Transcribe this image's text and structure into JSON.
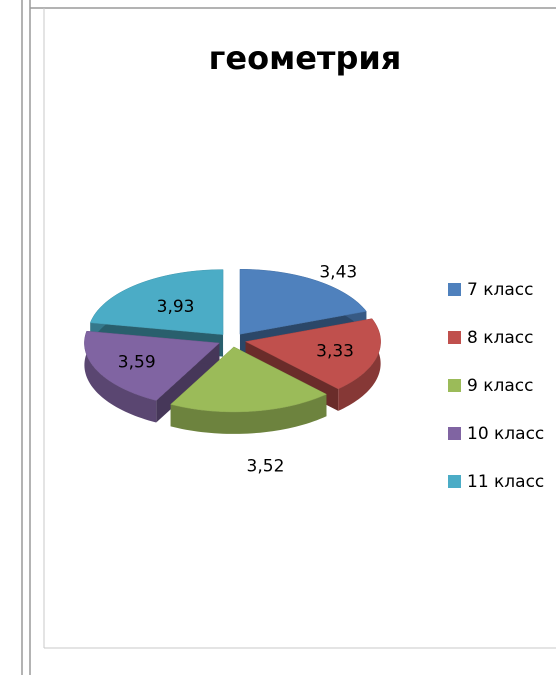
{
  "chart_data": {
    "type": "pie",
    "title": "геометрия",
    "categories": [
      "7 класс",
      "8 класс",
      "9 класс",
      "10 класс",
      "11 класс"
    ],
    "values": [
      3.43,
      3.33,
      3.52,
      3.59,
      3.93
    ],
    "value_labels": [
      "3,43",
      "3,33",
      "3,52",
      "3,59",
      "3,93"
    ],
    "colors": [
      "#4f81bd",
      "#c0504d",
      "#9bbb59",
      "#8064a2",
      "#4bacc6"
    ],
    "legend": "right"
  }
}
